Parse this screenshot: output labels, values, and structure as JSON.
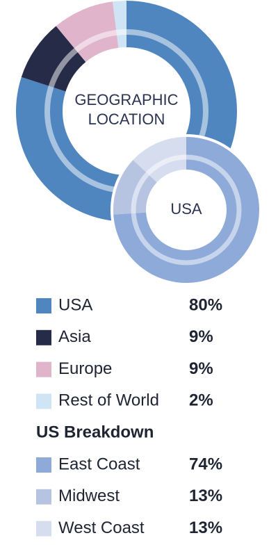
{
  "chart_data": [
    {
      "type": "pie",
      "title": "GEOGRAPHIC LOCATION",
      "categories": [
        "USA",
        "Asia",
        "Europe",
        "Rest of World"
      ],
      "values": [
        80,
        9,
        9,
        2
      ],
      "value_labels": [
        "80%",
        "9%",
        "9%",
        "2%"
      ],
      "colors": [
        "#4f86c0",
        "#262b48",
        "#e0b4ca",
        "#cfe4f5"
      ]
    },
    {
      "type": "pie",
      "title": "USA",
      "legend_title": "US Breakdown",
      "categories": [
        "East Coast",
        "Midwest",
        "West Coast"
      ],
      "values": [
        74,
        13,
        13
      ],
      "value_labels": [
        "74%",
        "13%",
        "13%"
      ],
      "colors": [
        "#8eaad8",
        "#b6c4e2",
        "#d6ddef"
      ]
    }
  ]
}
